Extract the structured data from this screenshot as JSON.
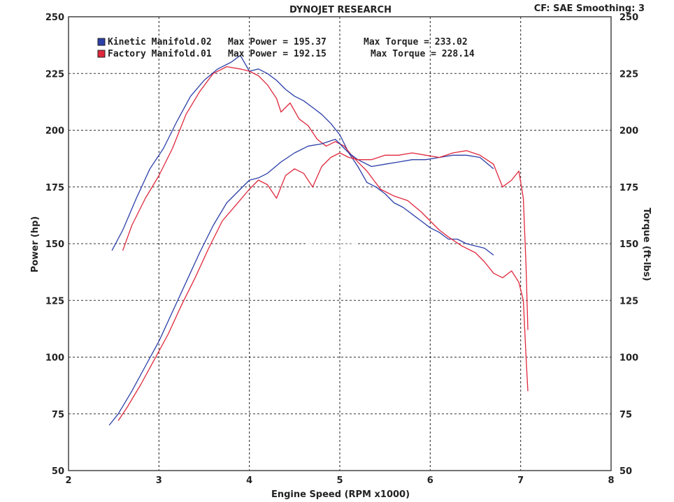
{
  "chart_data": {
    "type": "line",
    "title": "DYNOJET RESEARCH",
    "header_right": "CF: SAE  Smoothing: 3",
    "xlabel": "Engine Speed (RPM x1000)",
    "ylabel_left": "Power (hp)",
    "ylabel_right": "Torque (ft-lbs)",
    "xlim": [
      2,
      8
    ],
    "ylim": [
      50,
      250
    ],
    "x_ticks": [
      "2",
      "3",
      "4",
      "5",
      "6",
      "7",
      "8"
    ],
    "y_ticks": [
      "50",
      "75",
      "100",
      "125",
      "150",
      "175",
      "200",
      "225",
      "250"
    ],
    "grid": true,
    "legend_position": "top-left",
    "legend": [
      {
        "color": "#2b3fa8",
        "label": "Kinetic Manifold.02",
        "power_text": "Max Power = 195.37",
        "torque_text": "Max Torque = 233.02"
      },
      {
        "color": "#e0283c",
        "label": "Factory Manifold.01",
        "power_text": "Max Power = 192.15",
        "torque_text": "Max Torque = 228.14"
      }
    ],
    "series": [
      {
        "name": "Kinetic Manifold.02",
        "measure": "Torque",
        "color": "#2b3fa8",
        "x": [
          2.48,
          2.6,
          2.75,
          2.9,
          3.05,
          3.2,
          3.35,
          3.5,
          3.65,
          3.8,
          3.9,
          4.0,
          4.1,
          4.2,
          4.3,
          4.4,
          4.5,
          4.6,
          4.7,
          4.8,
          4.9,
          5.0,
          5.1,
          5.2,
          5.3,
          5.4,
          5.5,
          5.6,
          5.7,
          5.8,
          5.9,
          6.0,
          6.1,
          6.2,
          6.3,
          6.4,
          6.5,
          6.6,
          6.7
        ],
        "y": [
          147,
          156,
          170,
          183,
          192,
          204,
          215,
          222,
          227,
          230,
          233,
          226,
          227,
          225,
          222,
          218,
          215,
          213,
          210,
          207,
          203,
          198,
          190,
          184,
          177,
          175,
          172,
          168,
          166,
          163,
          160,
          157,
          155,
          152,
          152,
          150,
          149,
          148,
          145
        ]
      },
      {
        "name": "Factory Manifold.01",
        "measure": "Torque",
        "color": "#e0283c",
        "x": [
          2.6,
          2.7,
          2.85,
          3.0,
          3.15,
          3.3,
          3.45,
          3.6,
          3.75,
          3.9,
          4.0,
          4.1,
          4.2,
          4.3,
          4.35,
          4.45,
          4.55,
          4.65,
          4.75,
          4.85,
          4.95,
          5.05,
          5.15,
          5.3,
          5.45,
          5.6,
          5.75,
          5.9,
          6.0,
          6.1,
          6.2,
          6.35,
          6.5,
          6.6,
          6.7,
          6.8,
          6.9,
          6.98,
          7.03,
          7.06,
          7.08
        ],
        "y": [
          147,
          158,
          170,
          180,
          192,
          207,
          217,
          225,
          228,
          227,
          226,
          224,
          220,
          214,
          208,
          212,
          205,
          202,
          196,
          193,
          195,
          193,
          188,
          182,
          174,
          171,
          169,
          164,
          160,
          156,
          153,
          149,
          146,
          142,
          137,
          135,
          138,
          133,
          125,
          100,
          85
        ]
      },
      {
        "name": "Kinetic Manifold.02",
        "measure": "Power",
        "color": "#2b3fa8",
        "x": [
          2.45,
          2.55,
          2.7,
          2.85,
          3.0,
          3.15,
          3.3,
          3.45,
          3.6,
          3.75,
          3.9,
          4.0,
          4.1,
          4.2,
          4.35,
          4.5,
          4.65,
          4.8,
          4.95,
          5.1,
          5.2,
          5.35,
          5.5,
          5.65,
          5.8,
          5.95,
          6.1,
          6.25,
          6.4,
          6.55,
          6.7
        ],
        "y": [
          70,
          75,
          85,
          96,
          107,
          120,
          133,
          146,
          158,
          168,
          174,
          178,
          179,
          181,
          186,
          190,
          193,
          194,
          196,
          190,
          187,
          184,
          185,
          186,
          187,
          187,
          188,
          189,
          189,
          188,
          183
        ]
      },
      {
        "name": "Factory Manifold.01",
        "measure": "Power",
        "color": "#e0283c",
        "x": [
          2.55,
          2.65,
          2.8,
          2.95,
          3.1,
          3.25,
          3.4,
          3.55,
          3.7,
          3.85,
          4.0,
          4.1,
          4.2,
          4.3,
          4.4,
          4.5,
          4.6,
          4.7,
          4.8,
          4.9,
          5.0,
          5.1,
          5.2,
          5.35,
          5.5,
          5.65,
          5.8,
          5.95,
          6.1,
          6.25,
          6.4,
          6.55,
          6.7,
          6.8,
          6.9,
          6.98,
          7.03,
          7.06,
          7.08
        ],
        "y": [
          72,
          78,
          88,
          99,
          110,
          123,
          135,
          148,
          160,
          167,
          174,
          178,
          176,
          170,
          180,
          183,
          181,
          175,
          184,
          188,
          190,
          188,
          187,
          187,
          189,
          189,
          190,
          189,
          188,
          190,
          191,
          189,
          185,
          175,
          178,
          182,
          170,
          140,
          112
        ]
      }
    ]
  }
}
